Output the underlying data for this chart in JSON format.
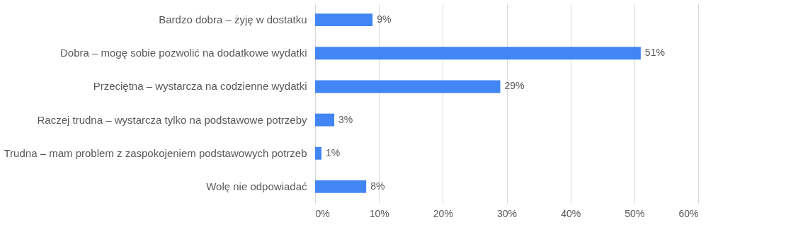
{
  "chart_data": {
    "type": "bar",
    "orientation": "horizontal",
    "categories": [
      "Bardzo dobra – żyję w dostatku",
      "Dobra – mogę sobie pozwolić na dodatkowe wydatki",
      "Przeciętna – wystarcza na codzienne wydatki",
      "Raczej trudna – wystarcza tylko na podstawowe potrzeby",
      "Trudna – mam problem z zaspokojeniem podstawowych potrzeb",
      "Wolę nie odpowiadać"
    ],
    "values": [
      9,
      51,
      29,
      3,
      1,
      8
    ],
    "value_labels": [
      "9%",
      "51%",
      "29%",
      "3%",
      "1%",
      "8%"
    ],
    "color": "#4285f4",
    "xlim": [
      0,
      60
    ],
    "xticks": [
      {
        "value": 0,
        "label": "0%"
      },
      {
        "value": 10,
        "label": "10%"
      },
      {
        "value": 20,
        "label": "20%"
      },
      {
        "value": 30,
        "label": "30%"
      },
      {
        "value": 40,
        "label": "40%"
      },
      {
        "value": 50,
        "label": "50%"
      },
      {
        "value": 60,
        "label": "60%"
      }
    ],
    "grid": "x"
  }
}
